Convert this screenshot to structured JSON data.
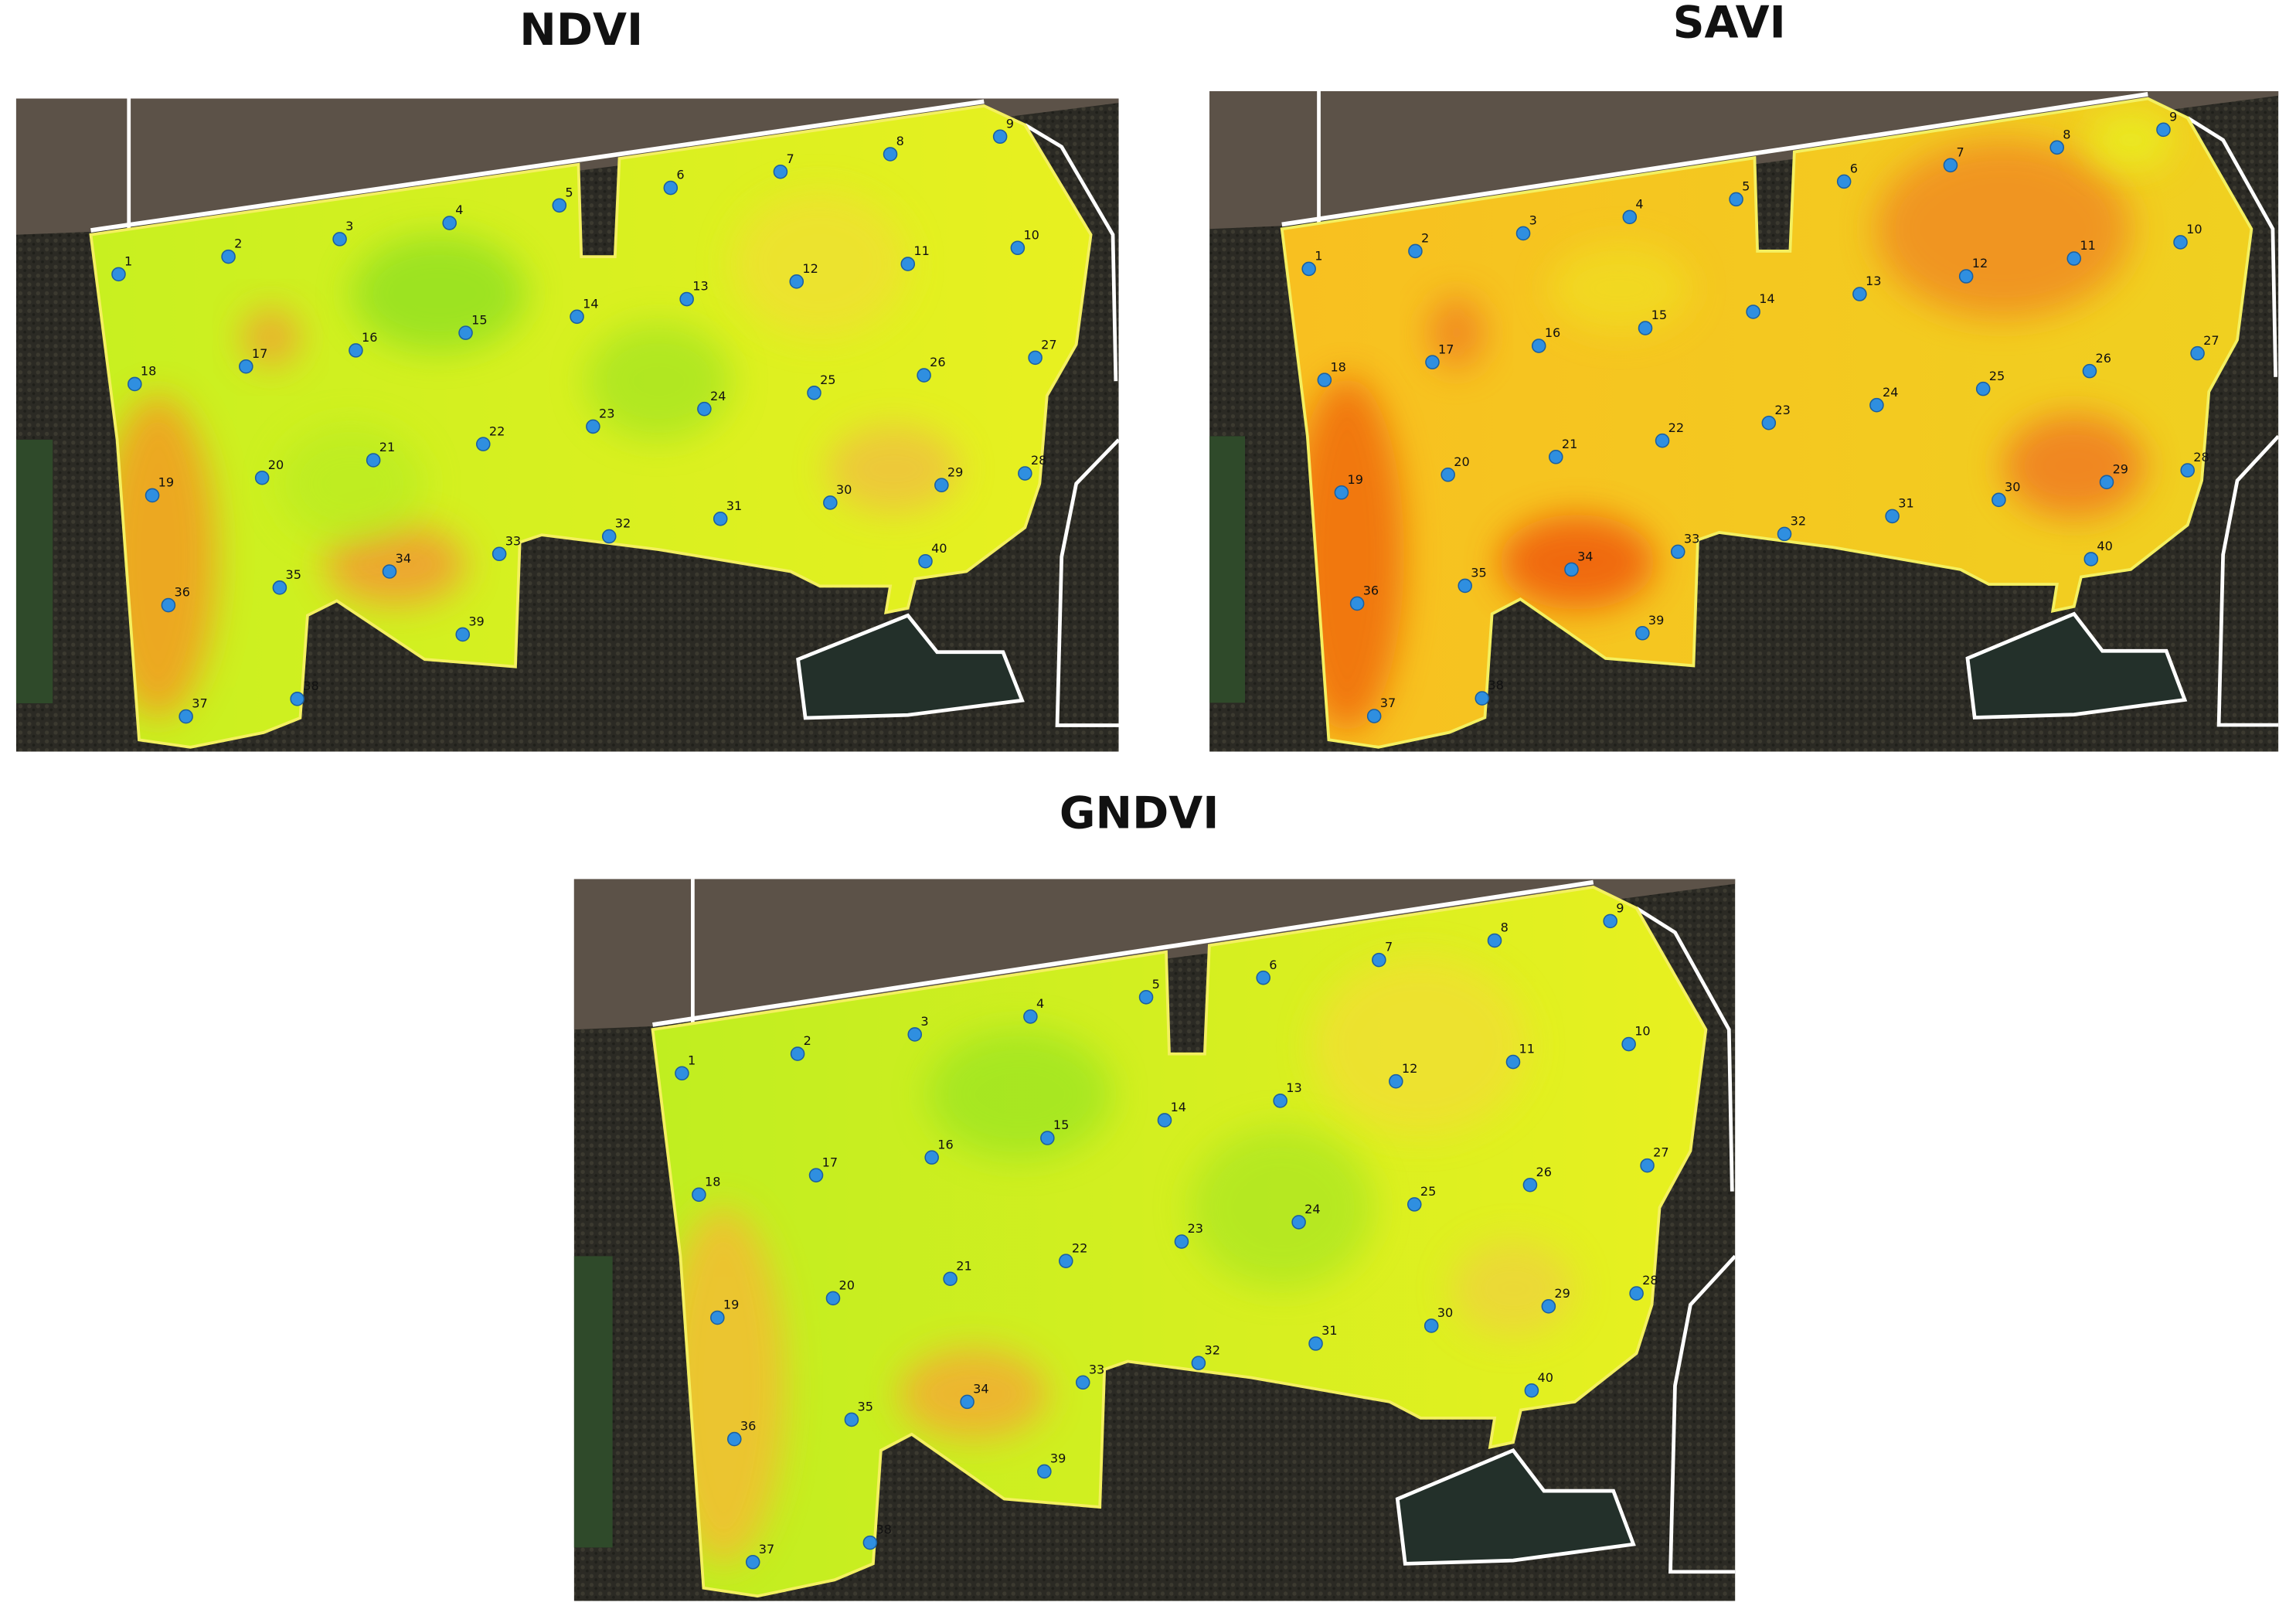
{
  "maps": [
    {
      "title": "NDVI",
      "points": [
        "1",
        "2",
        "3",
        "4",
        "5",
        "6",
        "7",
        "8",
        "9",
        "10",
        "11",
        "12",
        "13",
        "14",
        "15",
        "16",
        "17",
        "18",
        "19",
        "20",
        "21",
        "22",
        "23",
        "24",
        "25",
        "26",
        "27",
        "28",
        "29",
        "30",
        "31",
        "32",
        "33",
        "34",
        "35",
        "36",
        "37",
        "38",
        "39",
        "40"
      ]
    },
    {
      "title": "SAVI",
      "points": [
        "1",
        "2",
        "3",
        "4",
        "5",
        "6",
        "7",
        "8",
        "9",
        "10",
        "11",
        "12",
        "13",
        "14",
        "15",
        "16",
        "17",
        "18",
        "19",
        "20",
        "21",
        "22",
        "23",
        "24",
        "25",
        "26",
        "27",
        "28",
        "29",
        "30",
        "31",
        "32",
        "33",
        "34",
        "35",
        "36",
        "37",
        "38",
        "39",
        "40"
      ]
    },
    {
      "title": "GNDVI",
      "points": [
        "1",
        "2",
        "3",
        "4",
        "5",
        "6",
        "7",
        "8",
        "9",
        "10",
        "11",
        "12",
        "13",
        "14",
        "15",
        "16",
        "17",
        "18",
        "19",
        "20",
        "21",
        "22",
        "23",
        "24",
        "25",
        "26",
        "27",
        "28",
        "29",
        "30",
        "31",
        "32",
        "33",
        "34",
        "35",
        "36",
        "37",
        "38",
        "39",
        "40"
      ]
    }
  ]
}
